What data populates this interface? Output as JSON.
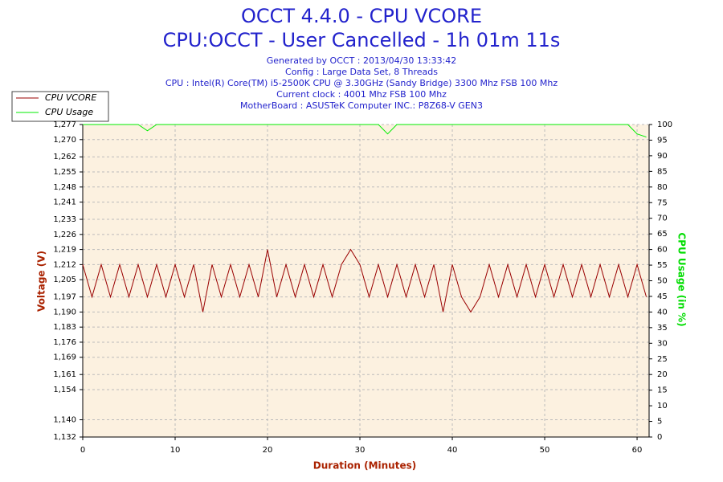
{
  "chart_data": {
    "type": "line",
    "title": "OCCT 4.4.0 - CPU VCORE",
    "subtitle": "CPU:OCCT - User Cancelled - 1h 01m 11s",
    "info": [
      "Generated by OCCT : 2013/04/30 13:33:42",
      "Config : Large Data Set, 8 Threads",
      "CPU : Intel(R) Core(TM) i5-2500K CPU @ 3.30GHz (Sandy Bridge) 3300 Mhz FSB 100 Mhz",
      "Current clock : 4001 Mhz FSB 100 Mhz",
      "MotherBoard : ASUSTeK Computer INC.: P8Z68-V GEN3"
    ],
    "x_label": "Duration (Minutes)",
    "y_label": "Voltage (V)",
    "y2_label": "CPU Usage (in %)",
    "x": [
      0,
      1,
      2,
      3,
      4,
      5,
      6,
      7,
      8,
      9,
      10,
      11,
      12,
      13,
      14,
      15,
      16,
      17,
      18,
      19,
      20,
      21,
      22,
      23,
      24,
      25,
      26,
      27,
      28,
      29,
      30,
      31,
      32,
      33,
      34,
      35,
      36,
      37,
      38,
      39,
      40,
      41,
      42,
      43,
      44,
      45,
      46,
      47,
      48,
      49,
      50,
      51,
      52,
      53,
      54,
      55,
      56,
      57,
      58,
      59,
      60,
      61
    ],
    "series": [
      {
        "name": "CPU VCORE",
        "color": "#990000",
        "axis": "y",
        "values": [
          1.212,
          1.197,
          1.212,
          1.197,
          1.212,
          1.197,
          1.212,
          1.197,
          1.212,
          1.197,
          1.212,
          1.197,
          1.212,
          1.19,
          1.212,
          1.197,
          1.212,
          1.197,
          1.212,
          1.197,
          1.219,
          1.197,
          1.212,
          1.197,
          1.212,
          1.197,
          1.212,
          1.197,
          1.212,
          1.219,
          1.212,
          1.197,
          1.212,
          1.197,
          1.212,
          1.197,
          1.212,
          1.197,
          1.212,
          1.19,
          1.212,
          1.197,
          1.19,
          1.197,
          1.212,
          1.197,
          1.212,
          1.197,
          1.212,
          1.197,
          1.212,
          1.197,
          1.212,
          1.197,
          1.212,
          1.197,
          1.212,
          1.197,
          1.212,
          1.197,
          1.212,
          1.197
        ]
      },
      {
        "name": "CPU Usage",
        "color": "#00ee00",
        "axis": "y2",
        "values": [
          100,
          100,
          100,
          100,
          100,
          100,
          100,
          98,
          100,
          100,
          100,
          100,
          100,
          100,
          100,
          100,
          100,
          100,
          100,
          100,
          100,
          100,
          100,
          100,
          100,
          100,
          100,
          100,
          100,
          100,
          100,
          100,
          100,
          97,
          100,
          100,
          100,
          100,
          100,
          100,
          100,
          100,
          100,
          100,
          100,
          100,
          100,
          100,
          100,
          100,
          100,
          100,
          100,
          100,
          100,
          100,
          100,
          100,
          100,
          100,
          97,
          96
        ]
      }
    ],
    "xlim": [
      0,
      61.3
    ],
    "xticks": [
      0,
      10,
      20,
      30,
      40,
      50,
      60
    ],
    "ylim": [
      1.132,
      1.277
    ],
    "yticks": [
      {
        "value": 1.132,
        "label": "1,132"
      },
      {
        "value": 1.14,
        "label": "1,140"
      },
      {
        "value": 1.154,
        "label": "1,154"
      },
      {
        "value": 1.161,
        "label": "1,161"
      },
      {
        "value": 1.169,
        "label": "1,169"
      },
      {
        "value": 1.176,
        "label": "1,176"
      },
      {
        "value": 1.183,
        "label": "1,183"
      },
      {
        "value": 1.19,
        "label": "1,190"
      },
      {
        "value": 1.197,
        "label": "1,197"
      },
      {
        "value": 1.205,
        "label": "1,205"
      },
      {
        "value": 1.212,
        "label": "1,212"
      },
      {
        "value": 1.219,
        "label": "1,219"
      },
      {
        "value": 1.226,
        "label": "1,226"
      },
      {
        "value": 1.233,
        "label": "1,233"
      },
      {
        "value": 1.241,
        "label": "1,241"
      },
      {
        "value": 1.248,
        "label": "1,248"
      },
      {
        "value": 1.255,
        "label": "1,255"
      },
      {
        "value": 1.262,
        "label": "1,262"
      },
      {
        "value": 1.27,
        "label": "1,270"
      },
      {
        "value": 1.277,
        "label": "1,277"
      }
    ],
    "y2lim": [
      0,
      100
    ],
    "y2ticks": [
      0,
      5,
      10,
      15,
      20,
      25,
      30,
      35,
      40,
      45,
      50,
      55,
      60,
      65,
      70,
      75,
      80,
      85,
      90,
      95,
      100
    ],
    "grid": true,
    "legend": "top-left"
  }
}
